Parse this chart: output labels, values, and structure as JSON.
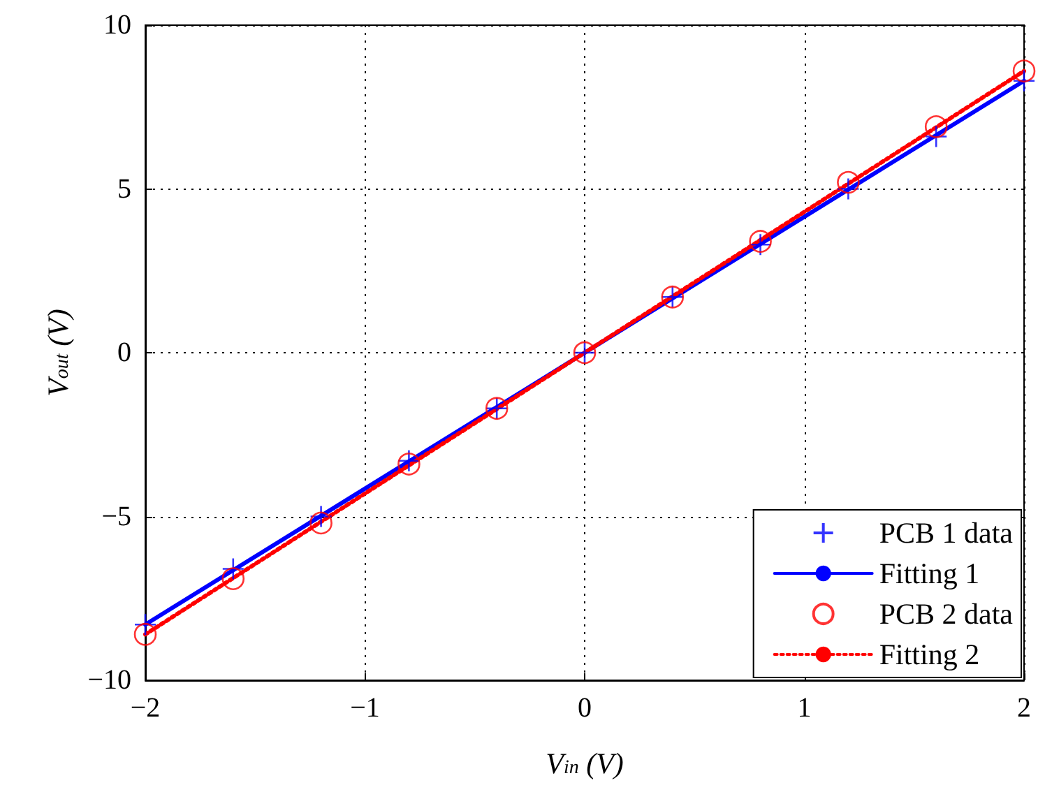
{
  "chart_data": {
    "type": "scatter",
    "xlabel": "V$_{in}$ (V)",
    "ylabel": "V$_{out}$ (V)",
    "xlim": [
      -2,
      2
    ],
    "xticks": [
      -2,
      -1,
      0,
      1,
      2
    ],
    "ylim": [
      -10,
      10
    ],
    "yticks": [
      -10,
      -5,
      0,
      5,
      10
    ],
    "grid": true,
    "legend": "bottom right",
    "series": [
      {
        "name": "PCB 1 data",
        "marker": "cross",
        "color": "#0000ff",
        "x": [
          -2,
          -1.6,
          -1.2,
          -0.8,
          -0.4,
          0,
          0.4,
          0.8,
          1.2,
          1.6,
          2
        ],
        "values": [
          -8.3,
          -6.6,
          -5.0,
          -3.3,
          -1.7,
          0,
          1.7,
          3.3,
          5.0,
          6.6,
          8.3
        ]
      },
      {
        "name": "Fitting 1",
        "type": "line",
        "line_style": "solid",
        "color": "#0000ff",
        "x": [
          -2,
          2
        ],
        "values": [
          -8.3,
          8.3
        ]
      },
      {
        "name": "PCB 2 data",
        "marker": "circle",
        "color": "#ff0000",
        "x": [
          -2,
          -1.6,
          -1.2,
          -0.8,
          -0.4,
          0,
          0.4,
          0.8,
          1.2,
          1.6,
          2
        ],
        "values": [
          -8.6,
          -6.9,
          -5.2,
          -3.4,
          -1.7,
          0,
          1.7,
          3.4,
          5.2,
          6.9,
          8.6
        ]
      },
      {
        "name": "Fitting 2",
        "type": "line",
        "line_style": "dotted",
        "color": "#ff0000",
        "x": [
          -2,
          2
        ],
        "values": [
          -8.6,
          8.6
        ]
      }
    ]
  }
}
